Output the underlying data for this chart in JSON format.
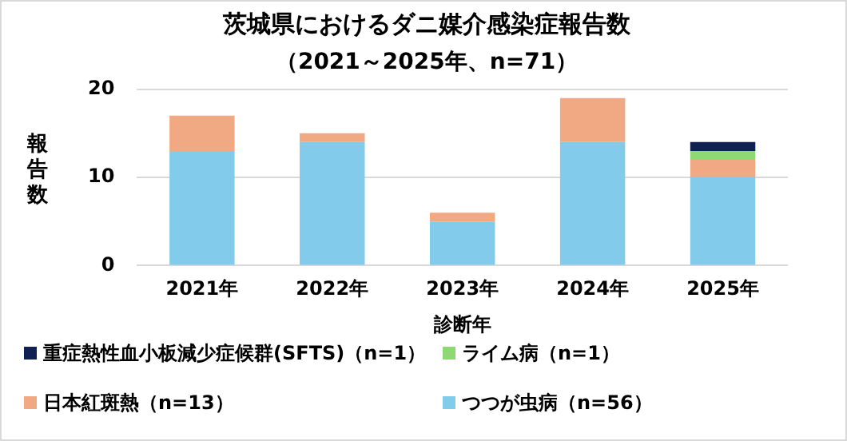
{
  "chart_data": {
    "type": "bar",
    "stacked": true,
    "title": "茨城県におけるダニ媒介感染症報告数",
    "subtitle": "（2021～2025年、n=71）",
    "xlabel": "診断年",
    "ylabel": "報告数",
    "categories": [
      "2021年",
      "2022年",
      "2023年",
      "2024年",
      "2025年"
    ],
    "series": [
      {
        "name": "つつが虫病（n=56）",
        "color": "#83cbeb",
        "values": [
          13,
          14,
          5,
          14,
          10
        ]
      },
      {
        "name": "日本紅斑熱（n=13）",
        "color": "#f1a983",
        "values": [
          4,
          1,
          1,
          5,
          2
        ]
      },
      {
        "name": "ライム病（n=1）",
        "color": "#8ed973",
        "values": [
          0,
          0,
          0,
          0,
          1
        ]
      },
      {
        "name": "重症熱性血小板減少症候群(SFTS)（n=1）",
        "color": "#0e2150",
        "values": [
          0,
          0,
          0,
          0,
          1
        ]
      }
    ],
    "ylim": [
      0,
      20
    ],
    "yticks": [
      0,
      10,
      20
    ],
    "grid": "y",
    "legend": "bottom"
  }
}
